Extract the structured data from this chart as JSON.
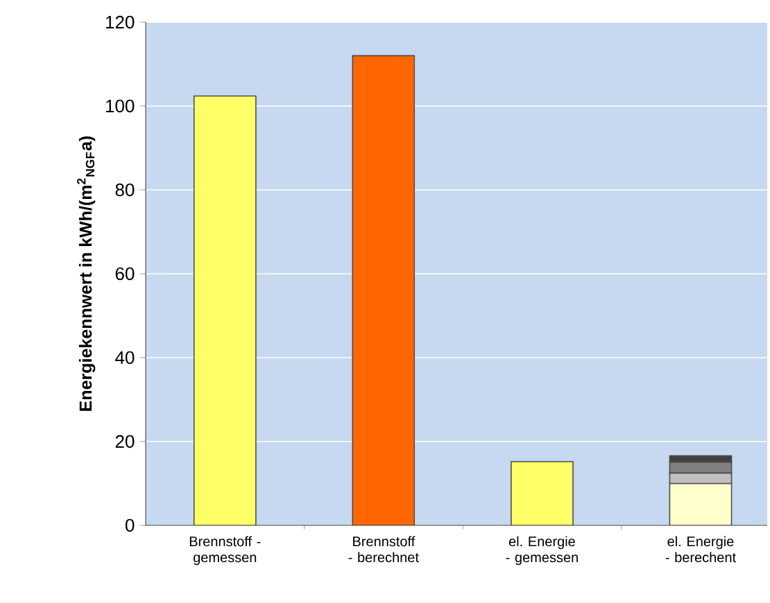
{
  "chart_data": {
    "type": "bar",
    "stacked": true,
    "ylabel": "Energiekennwert in kWh/(m$^{2}$$_{NGF}$a)",
    "categories": [
      "Brennstoff - gemessen",
      "Brennstoff - berechnet",
      "el. Energie - gemessen",
      "el. Energie - berechent"
    ],
    "series": [
      {
        "colors": [
          "#ffff66",
          "#ff6600",
          "#ffff66",
          "#ffffcc"
        ],
        "values": [
          102.4,
          112,
          15.2,
          10
        ]
      },
      {
        "colors": [
          "#c0c0c0",
          "#c0c0c0",
          "#c0c0c0",
          "#c0c0c0"
        ],
        "values": [
          null,
          null,
          null,
          2.5
        ]
      },
      {
        "colors": [
          "#808080",
          "#808080",
          "#808080",
          "#808080"
        ],
        "values": [
          null,
          null,
          null,
          2.6
        ]
      },
      {
        "colors": [
          "#404040",
          "#404040",
          "#404040",
          "#404040"
        ],
        "values": [
          null,
          null,
          null,
          1.5
        ]
      }
    ],
    "ylim": [
      0,
      120
    ],
    "yticks": [
      0,
      20,
      40,
      60,
      80,
      100,
      120
    ],
    "grid": "y"
  }
}
